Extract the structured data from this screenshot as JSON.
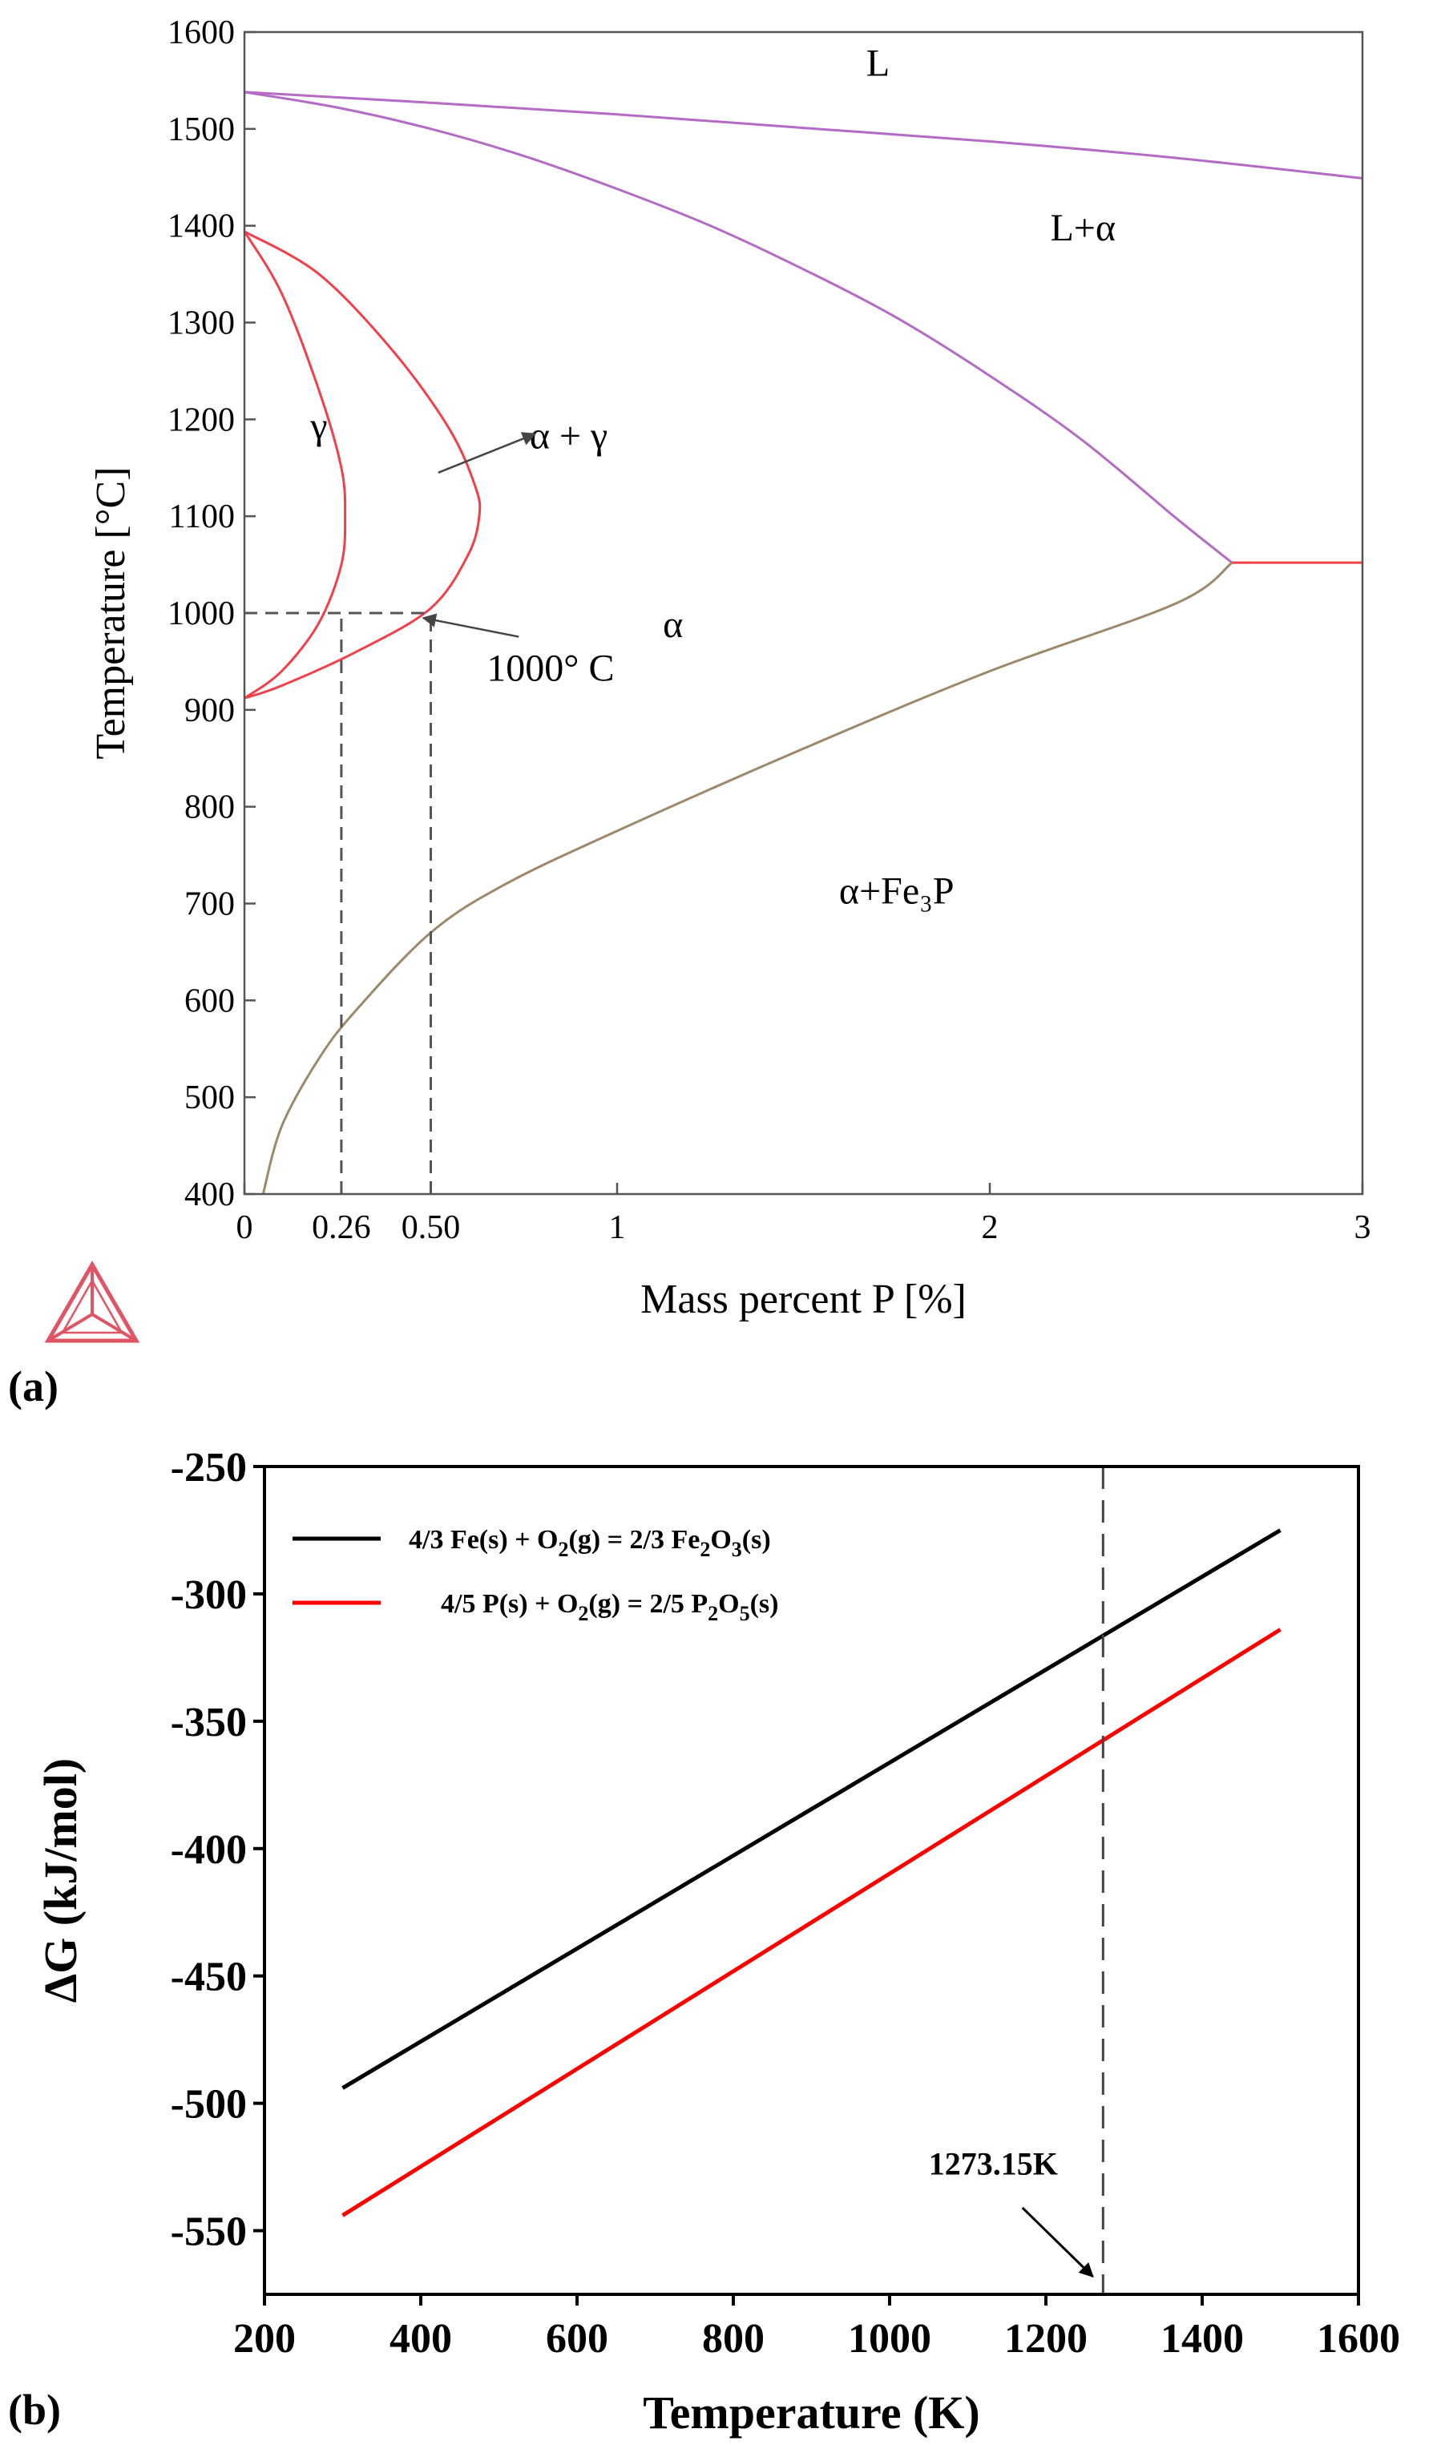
{
  "chart_data": [
    {
      "id": "a",
      "panel_label": "(a)",
      "type": "line",
      "title": "",
      "xlabel": "Mass percent P [%]",
      "ylabel": "Temperature [°C]",
      "xlim": [
        0,
        3
      ],
      "ylim": [
        400,
        1600
      ],
      "xticks": [
        0,
        0.26,
        0.5,
        1,
        2,
        3
      ],
      "xtick_labels": [
        "0",
        "0.26",
        "0.50",
        "1",
        "2",
        "3"
      ],
      "yticks": [
        400,
        500,
        600,
        700,
        800,
        900,
        1000,
        1100,
        1200,
        1300,
        1400,
        1500,
        1600
      ],
      "ytick_labels": [
        "400",
        "500",
        "600",
        "700",
        "800",
        "900",
        "1000",
        "1100",
        "1200",
        "1300",
        "1400",
        "1500",
        "1600"
      ],
      "grid": false,
      "series": [
        {
          "name": "liquidus",
          "color": "#b36bc4",
          "x": [
            0,
            0.5,
            1,
            1.5,
            2,
            2.5,
            3
          ],
          "y": [
            1538,
            1527,
            1515,
            1501,
            1487,
            1470,
            1449
          ]
        },
        {
          "name": "solidus",
          "color": "#b36bc4",
          "x": [
            0,
            0.25,
            0.5,
            0.75,
            1,
            1.25,
            1.5,
            1.75,
            2,
            2.25,
            2.5,
            2.65
          ],
          "y": [
            1538,
            1522,
            1500,
            1472,
            1438,
            1400,
            1355,
            1305,
            1245,
            1178,
            1098,
            1052
          ]
        },
        {
          "name": "gamma-loop-inner",
          "color": "#f0404a",
          "x": [
            0,
            0.1,
            0.2,
            0.26,
            0.27,
            0.26,
            0.2,
            0.1,
            0
          ],
          "y": [
            1394,
            1330,
            1230,
            1150,
            1100,
            1050,
            990,
            940,
            912
          ]
        },
        {
          "name": "gamma-loop-outer",
          "color": "#f0404a",
          "x": [
            0,
            0.2,
            0.4,
            0.55,
            0.62,
            0.63,
            0.6,
            0.5,
            0.3,
            0.1,
            0
          ],
          "y": [
            1394,
            1350,
            1270,
            1190,
            1130,
            1100,
            1060,
            1005,
            960,
            925,
            912
          ]
        },
        {
          "name": "eutectic-line",
          "color": "#f0404a",
          "x": [
            2.65,
            3
          ],
          "y": [
            1052,
            1052
          ]
        },
        {
          "name": "solvus",
          "color": "#9a8a6a",
          "x": [
            0.05,
            0.1,
            0.2,
            0.3,
            0.5,
            0.7,
            1,
            1.5,
            2,
            2.5,
            2.65
          ],
          "y": [
            400,
            470,
            540,
            590,
            670,
            720,
            775,
            860,
            940,
            1010,
            1052
          ]
        }
      ],
      "guides": [
        {
          "x": [
            0,
            0.5
          ],
          "y": [
            1000,
            1000
          ]
        },
        {
          "x": [
            0.26,
            0.26
          ],
          "y": [
            400,
            1000
          ]
        },
        {
          "x": [
            0.5,
            0.5
          ],
          "y": [
            400,
            1000
          ]
        }
      ],
      "region_labels": [
        {
          "text": "L",
          "x": 1.7,
          "y": 1555
        },
        {
          "text": "L+α",
          "x": 2.25,
          "y": 1385
        },
        {
          "text": "γ",
          "x": 0.2,
          "y": 1180
        },
        {
          "text": "α + γ",
          "x": 0.87,
          "y": 1170
        },
        {
          "text": "α",
          "x": 1.15,
          "y": 975
        },
        {
          "text": "α+Fe₃P",
          "x": 1.75,
          "y": 700
        }
      ],
      "annotations": [
        {
          "text": "1000° C",
          "x": 0.65,
          "y": 930,
          "arrow_to_x": 0.48,
          "arrow_to_y": 995
        },
        {
          "text": "",
          "x": 0.52,
          "y": 1145,
          "arrow_to_x": 0.78,
          "arrow_to_y": 1185
        }
      ]
    },
    {
      "id": "b",
      "panel_label": "(b)",
      "type": "line",
      "title": "",
      "xlabel": "Temperature (K)",
      "ylabel": "ΔG (kJ/mol)",
      "xlim": [
        200,
        1600
      ],
      "ylim": [
        -575,
        -250
      ],
      "xticks": [
        200,
        400,
        600,
        800,
        1000,
        1200,
        1400,
        1600
      ],
      "yticks": [
        -250,
        -300,
        -350,
        -400,
        -450,
        -500,
        -550
      ],
      "grid": false,
      "legend_position": "top-left",
      "series": [
        {
          "name": "4/3 Fe(s) + O2(g) = 2/3 Fe2O3(s)",
          "color": "#000000",
          "x": [
            300,
            1500
          ],
          "y": [
            -494,
            -275
          ]
        },
        {
          "name": "4/5 P(s) + O2(g) = 2/5 P2O5(s)",
          "color": "#ff0000",
          "x": [
            300,
            1500
          ],
          "y": [
            -544,
            -314
          ]
        }
      ],
      "legend": [
        {
          "pre": "4/3 Fe(s) + O",
          "sub1": "2",
          "mid": "(g) = 2/3 Fe",
          "sub2": "2",
          "mid2": "O",
          "sub3": "3",
          "post": "(s)",
          "color": "#000000"
        },
        {
          "pre": "4/5 P(s) + O",
          "sub1": "2",
          "mid": "(g) = 2/5 P",
          "sub2": "2",
          "mid2": "O",
          "sub3": "5",
          "post": "(s)",
          "color": "#ff0000"
        }
      ],
      "vline": {
        "x": 1273.15
      },
      "annotations": [
        {
          "text": "1273.15K",
          "x": 1050,
          "y": -528,
          "arrow_from_x": 1170,
          "arrow_from_y": -541,
          "arrow_to_x": 1260,
          "arrow_to_y": -568
        }
      ]
    }
  ]
}
